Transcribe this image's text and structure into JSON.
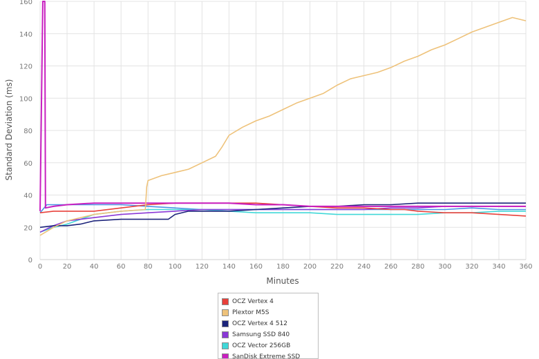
{
  "chart_data": {
    "type": "line",
    "xlabel": "Minutes",
    "ylabel": "Standard Deviation (ms)",
    "xlim": [
      0,
      360
    ],
    "ylim": [
      0,
      160
    ],
    "x_ticks": [
      0,
      20,
      40,
      60,
      80,
      100,
      120,
      140,
      160,
      180,
      200,
      220,
      240,
      260,
      280,
      300,
      320,
      340,
      360
    ],
    "y_ticks": [
      0,
      20,
      40,
      60,
      80,
      100,
      120,
      140,
      160
    ],
    "grid": true,
    "legend_position": "bottom",
    "series": [
      {
        "name": "OCZ Vertex 4",
        "color": "#e8403a",
        "x": [
          0,
          10,
          20,
          40,
          60,
          80,
          100,
          120,
          140,
          160,
          180,
          200,
          220,
          240,
          260,
          270,
          280,
          300,
          320,
          340,
          360
        ],
        "y": [
          29,
          30,
          30,
          30,
          32,
          34,
          35,
          35,
          35,
          35,
          34,
          33,
          32,
          32,
          31,
          31,
          30,
          29,
          29,
          28,
          27
        ]
      },
      {
        "name": "Plextor M5S",
        "color": "#eec27a",
        "x": [
          0,
          10,
          20,
          40,
          60,
          78,
          79,
          80,
          90,
          100,
          110,
          120,
          130,
          135,
          140,
          150,
          160,
          170,
          180,
          190,
          200,
          210,
          220,
          230,
          240,
          250,
          260,
          270,
          280,
          290,
          300,
          310,
          320,
          330,
          340,
          350,
          360
        ],
        "y": [
          15,
          20,
          24,
          28,
          30,
          31,
          45,
          49,
          52,
          54,
          56,
          60,
          64,
          70,
          77,
          82,
          86,
          89,
          93,
          97,
          100,
          103,
          108,
          112,
          114,
          116,
          119,
          123,
          126,
          130,
          133,
          137,
          141,
          144,
          147,
          150,
          148
        ]
      },
      {
        "name": "OCZ Vertex 4 512",
        "color": "#1b237a",
        "x": [
          0,
          10,
          20,
          30,
          40,
          60,
          80,
          95,
          100,
          110,
          120,
          140,
          160,
          180,
          200,
          220,
          240,
          260,
          280,
          300,
          320,
          340,
          360
        ],
        "y": [
          20,
          21,
          21,
          22,
          24,
          25,
          25,
          25,
          28,
          30,
          30,
          30,
          31,
          32,
          33,
          33,
          34,
          34,
          35,
          35,
          35,
          35,
          35
        ]
      },
      {
        "name": "Samsung SSD 840",
        "color": "#8a38d6",
        "x": [
          0,
          10,
          20,
          40,
          60,
          80,
          100,
          120,
          140,
          160,
          180,
          200,
          220,
          240,
          260,
          280,
          300,
          320,
          340,
          360
        ],
        "y": [
          17,
          21,
          24,
          26,
          28,
          29,
          30,
          31,
          31,
          31,
          31,
          31,
          31,
          31,
          32,
          32,
          33,
          33,
          33,
          33
        ]
      },
      {
        "name": "OCZ Vector 256GB",
        "color": "#40d8d8",
        "x": [
          0,
          10,
          20,
          40,
          60,
          80,
          100,
          120,
          140,
          160,
          180,
          200,
          220,
          240,
          260,
          280,
          300,
          320,
          340,
          360
        ],
        "y": [
          17,
          20,
          22,
          28,
          30,
          31,
          31,
          31,
          30,
          29,
          29,
          29,
          28,
          28,
          28,
          28,
          29,
          29,
          30,
          30
        ]
      },
      {
        "name": "SanDisk Extreme SSD",
        "color": "#c81fc0",
        "x": [
          0,
          2,
          2.5,
          3,
          3.5,
          4,
          10,
          20,
          40,
          60,
          80,
          100,
          120,
          140,
          160,
          180,
          200,
          220,
          240,
          260,
          280,
          300,
          320,
          340,
          360
        ],
        "y": [
          30,
          160,
          160,
          160,
          160,
          32,
          33,
          34,
          35,
          35,
          35,
          35,
          35,
          35,
          34,
          34,
          33,
          33,
          33,
          33,
          33,
          33,
          33,
          33,
          33
        ]
      },
      {
        "name": "",
        "color": "#4a92e4",
        "x": [
          0,
          5,
          10,
          20,
          40,
          60,
          80,
          100,
          120,
          140,
          160,
          180,
          200,
          220,
          240,
          260,
          280,
          300,
          320,
          340,
          360
        ],
        "y": [
          29,
          34,
          34,
          34,
          34,
          34,
          33,
          32,
          31,
          31,
          31,
          31,
          31,
          31,
          31,
          31,
          31,
          31,
          32,
          31,
          31
        ]
      }
    ]
  }
}
